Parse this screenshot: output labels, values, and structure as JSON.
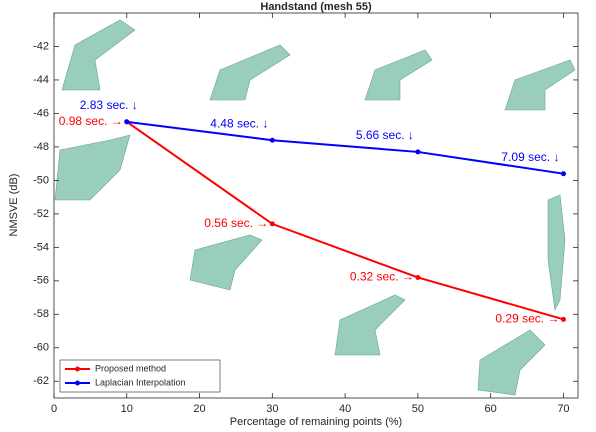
{
  "chart_data": {
    "type": "line",
    "title": "Handstand (mesh 55)",
    "xlabel": "Percentage of remaining points (%)",
    "ylabel": "NMSVE (dB)",
    "x": [
      10,
      30,
      50,
      70
    ],
    "series": [
      {
        "name": "Proposed method",
        "color": "#ff0000",
        "values": [
          -46.5,
          -52.6,
          -55.8,
          -58.3
        ],
        "time_labels": [
          "0.98 sec. →",
          "0.56 sec. →",
          "0.32 sec. →",
          "0.29 sec. →"
        ]
      },
      {
        "name": "Laplacian Interpolation",
        "color": "#0000ff",
        "values": [
          -46.5,
          -47.6,
          -48.3,
          -49.6
        ],
        "time_labels": [
          "2.83 sec. ↓",
          "4.48 sec. ↓",
          "5.66 sec. ↓",
          "7.09 sec. ↓"
        ]
      }
    ],
    "xlim": [
      0,
      72
    ],
    "ylim": [
      -63,
      -40
    ],
    "xticks": [
      0,
      10,
      20,
      30,
      40,
      50,
      60,
      70
    ],
    "yticks": [
      -62,
      -60,
      -58,
      -56,
      -54,
      -52,
      -50,
      -48,
      -46,
      -44,
      -42
    ],
    "legend": "lower-left"
  }
}
